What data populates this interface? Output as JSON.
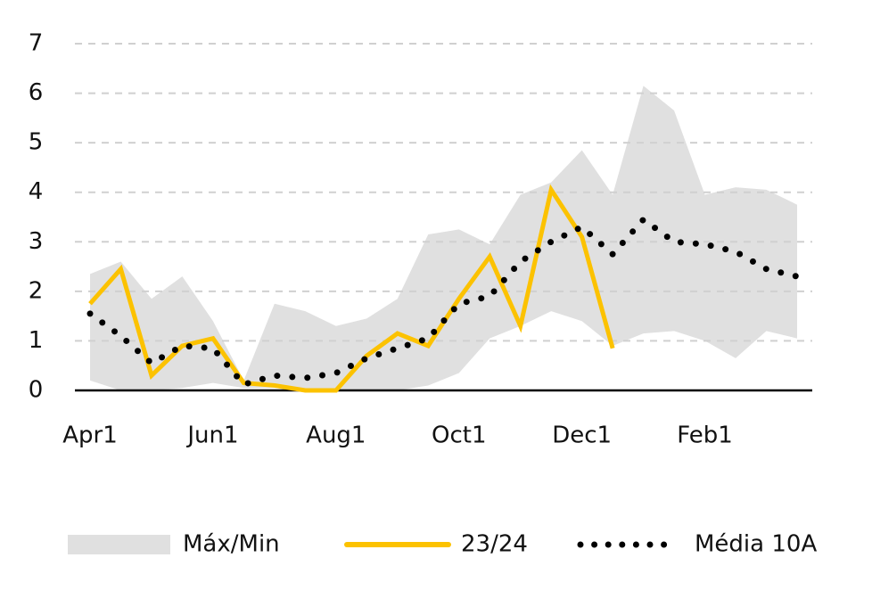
{
  "chart_data": {
    "type": "line",
    "categories": [
      "Apr1",
      null,
      null,
      null,
      "Jun1",
      null,
      null,
      null,
      "Aug1",
      null,
      null,
      null,
      "Oct1",
      null,
      null,
      null,
      "Dec1",
      null,
      null,
      null,
      "Feb1",
      null,
      null,
      null
    ],
    "ylim": [
      0,
      7
    ],
    "yticks": [
      0,
      1,
      2,
      3,
      4,
      5,
      6,
      7
    ],
    "grid": true,
    "series": [
      {
        "name": "Máx/Min",
        "color": "#e0e0e0",
        "max": [
          2.35,
          2.6,
          1.85,
          2.3,
          1.4,
          0.2,
          1.75,
          1.6,
          1.3,
          1.45,
          1.85,
          3.15,
          3.25,
          2.95,
          3.95,
          4.2,
          4.85,
          3.95,
          6.15,
          5.65,
          3.95,
          4.1,
          4.05,
          3.75
        ],
        "min": [
          0.2,
          0.0,
          0.0,
          0.05,
          0.15,
          0.05,
          0.05,
          0.0,
          0.0,
          0.0,
          0.0,
          0.1,
          0.35,
          1.05,
          1.3,
          1.6,
          1.4,
          0.9,
          1.15,
          1.2,
          1.0,
          0.65,
          1.2,
          1.05
        ]
      },
      {
        "name": "23/24",
        "color": "#fcc200",
        "values": [
          1.75,
          2.45,
          0.3,
          0.9,
          1.05,
          0.15,
          0.1,
          0.0,
          0.0,
          0.7,
          1.15,
          0.9,
          1.85,
          2.7,
          1.3,
          4.05,
          3.1,
          0.85,
          null,
          null,
          null,
          null,
          null,
          null
        ]
      },
      {
        "name": "Média 10A",
        "color": "#000000",
        "values": [
          1.55,
          1.1,
          0.55,
          0.9,
          0.85,
          0.12,
          0.3,
          0.25,
          0.35,
          0.65,
          0.85,
          1.05,
          1.75,
          1.9,
          2.6,
          3.0,
          3.3,
          2.75,
          3.45,
          3.0,
          2.95,
          2.8,
          2.45,
          2.3
        ]
      }
    ]
  }
}
